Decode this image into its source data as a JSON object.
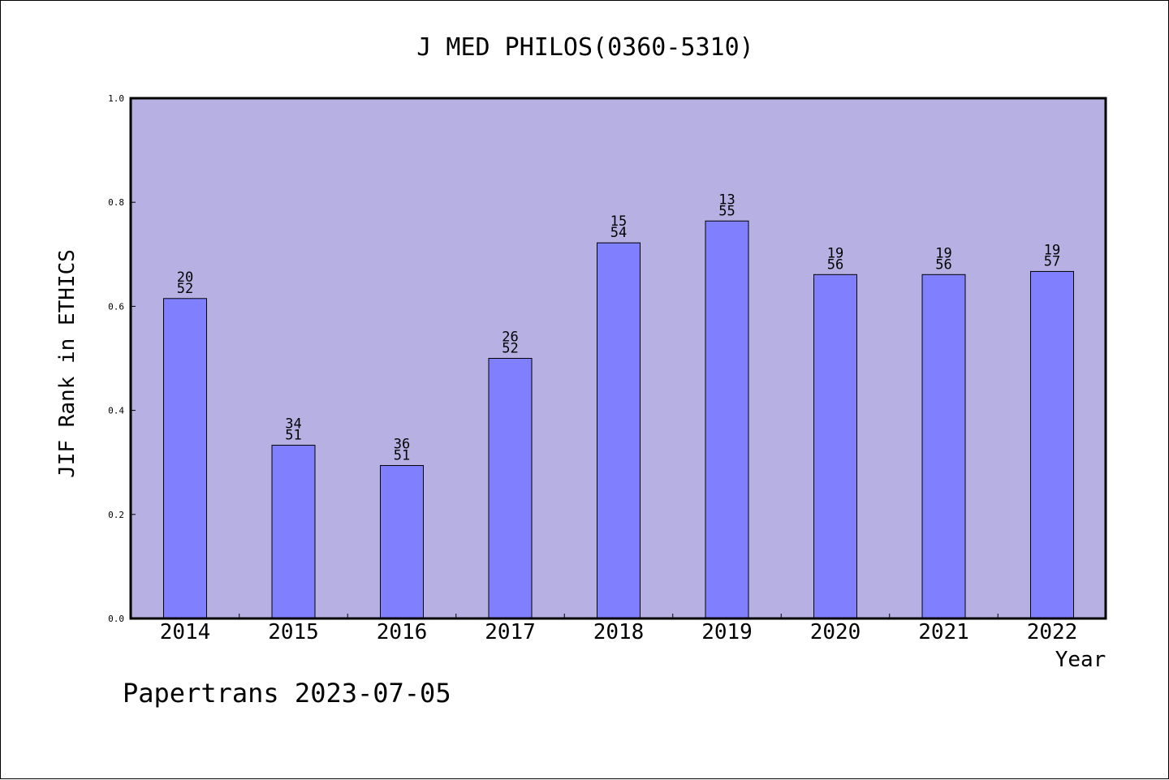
{
  "chart_data": {
    "type": "bar",
    "title": "J MED PHILOS(0360-5310)",
    "xlabel": "Year",
    "ylabel": "JIF Rank in ETHICS",
    "ylim": [
      0,
      1.0
    ],
    "y_ticks": [
      "0.0",
      "0.2",
      "0.4",
      "0.6",
      "0.8",
      "1.0"
    ],
    "categories": [
      "2014",
      "2015",
      "2016",
      "2017",
      "2018",
      "2019",
      "2020",
      "2021",
      "2022"
    ],
    "values": [
      0.615,
      0.333,
      0.294,
      0.5,
      0.722,
      0.764,
      0.661,
      0.661,
      0.667
    ],
    "rank_labels": [
      [
        "20",
        "52"
      ],
      [
        "34",
        "51"
      ],
      [
        "36",
        "51"
      ],
      [
        "26",
        "52"
      ],
      [
        "15",
        "54"
      ],
      [
        "13",
        "55"
      ],
      [
        "19",
        "56"
      ],
      [
        "19",
        "56"
      ],
      [
        "19",
        "57"
      ]
    ],
    "grid": false,
    "colors": {
      "plot_background": "#b6b0e3",
      "bar_fill": "#8080ff",
      "bar_stroke": "#000000"
    }
  },
  "footer": {
    "text": "Papertrans 2023-07-05"
  }
}
